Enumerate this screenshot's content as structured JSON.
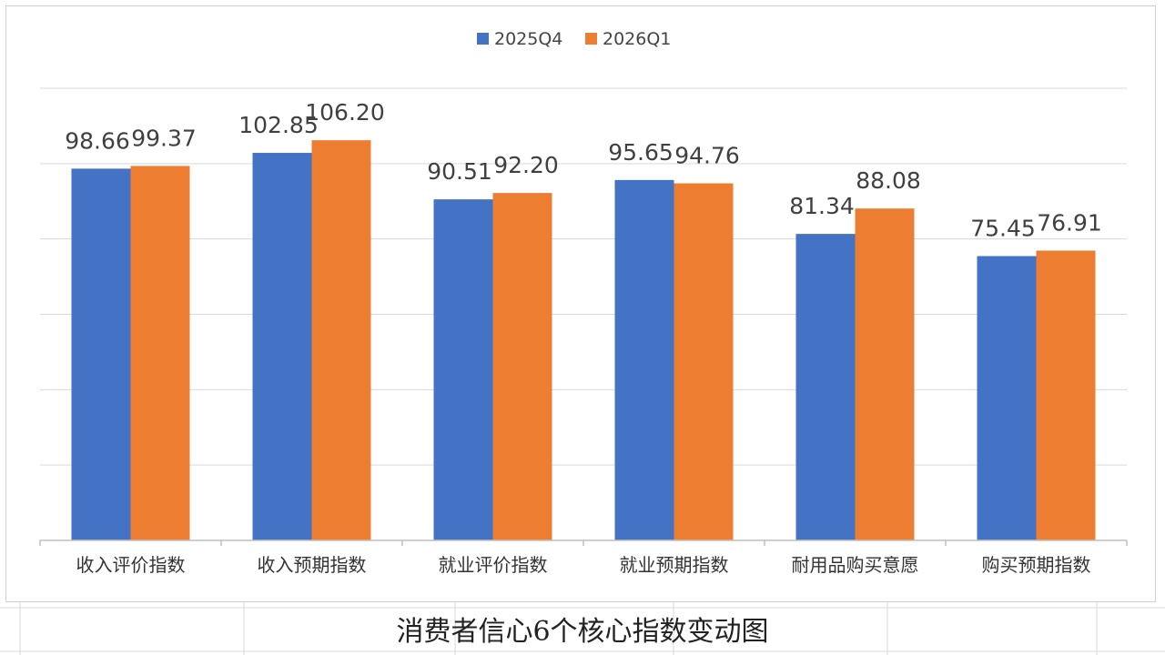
{
  "caption": "消费者信心6个核心指数变动图",
  "chart_data": {
    "type": "bar",
    "title": "",
    "xlabel": "",
    "ylabel": "",
    "categories": [
      "收入评价指数",
      "收入预期指数",
      "就业评价指数",
      "就业预期指数",
      "耐用品购买意愿",
      "购买预期指数"
    ],
    "series": [
      {
        "name": "2025Q4",
        "color": "#4472C4",
        "values": [
          98.66,
          102.85,
          90.51,
          95.65,
          81.34,
          75.45
        ]
      },
      {
        "name": "2026Q1",
        "color": "#ED7D31",
        "values": [
          99.37,
          106.2,
          92.2,
          94.76,
          88.08,
          76.91
        ]
      }
    ],
    "value_labels": [
      [
        "98.66",
        "102.85",
        "90.51",
        "95.65",
        "81.34",
        "75.45"
      ],
      [
        "99.37",
        "106.20",
        "92.20",
        "94.76",
        "88.08",
        "76.91"
      ]
    ],
    "ylim": [
      0,
      120
    ],
    "grid": true,
    "legend": "top-center"
  }
}
